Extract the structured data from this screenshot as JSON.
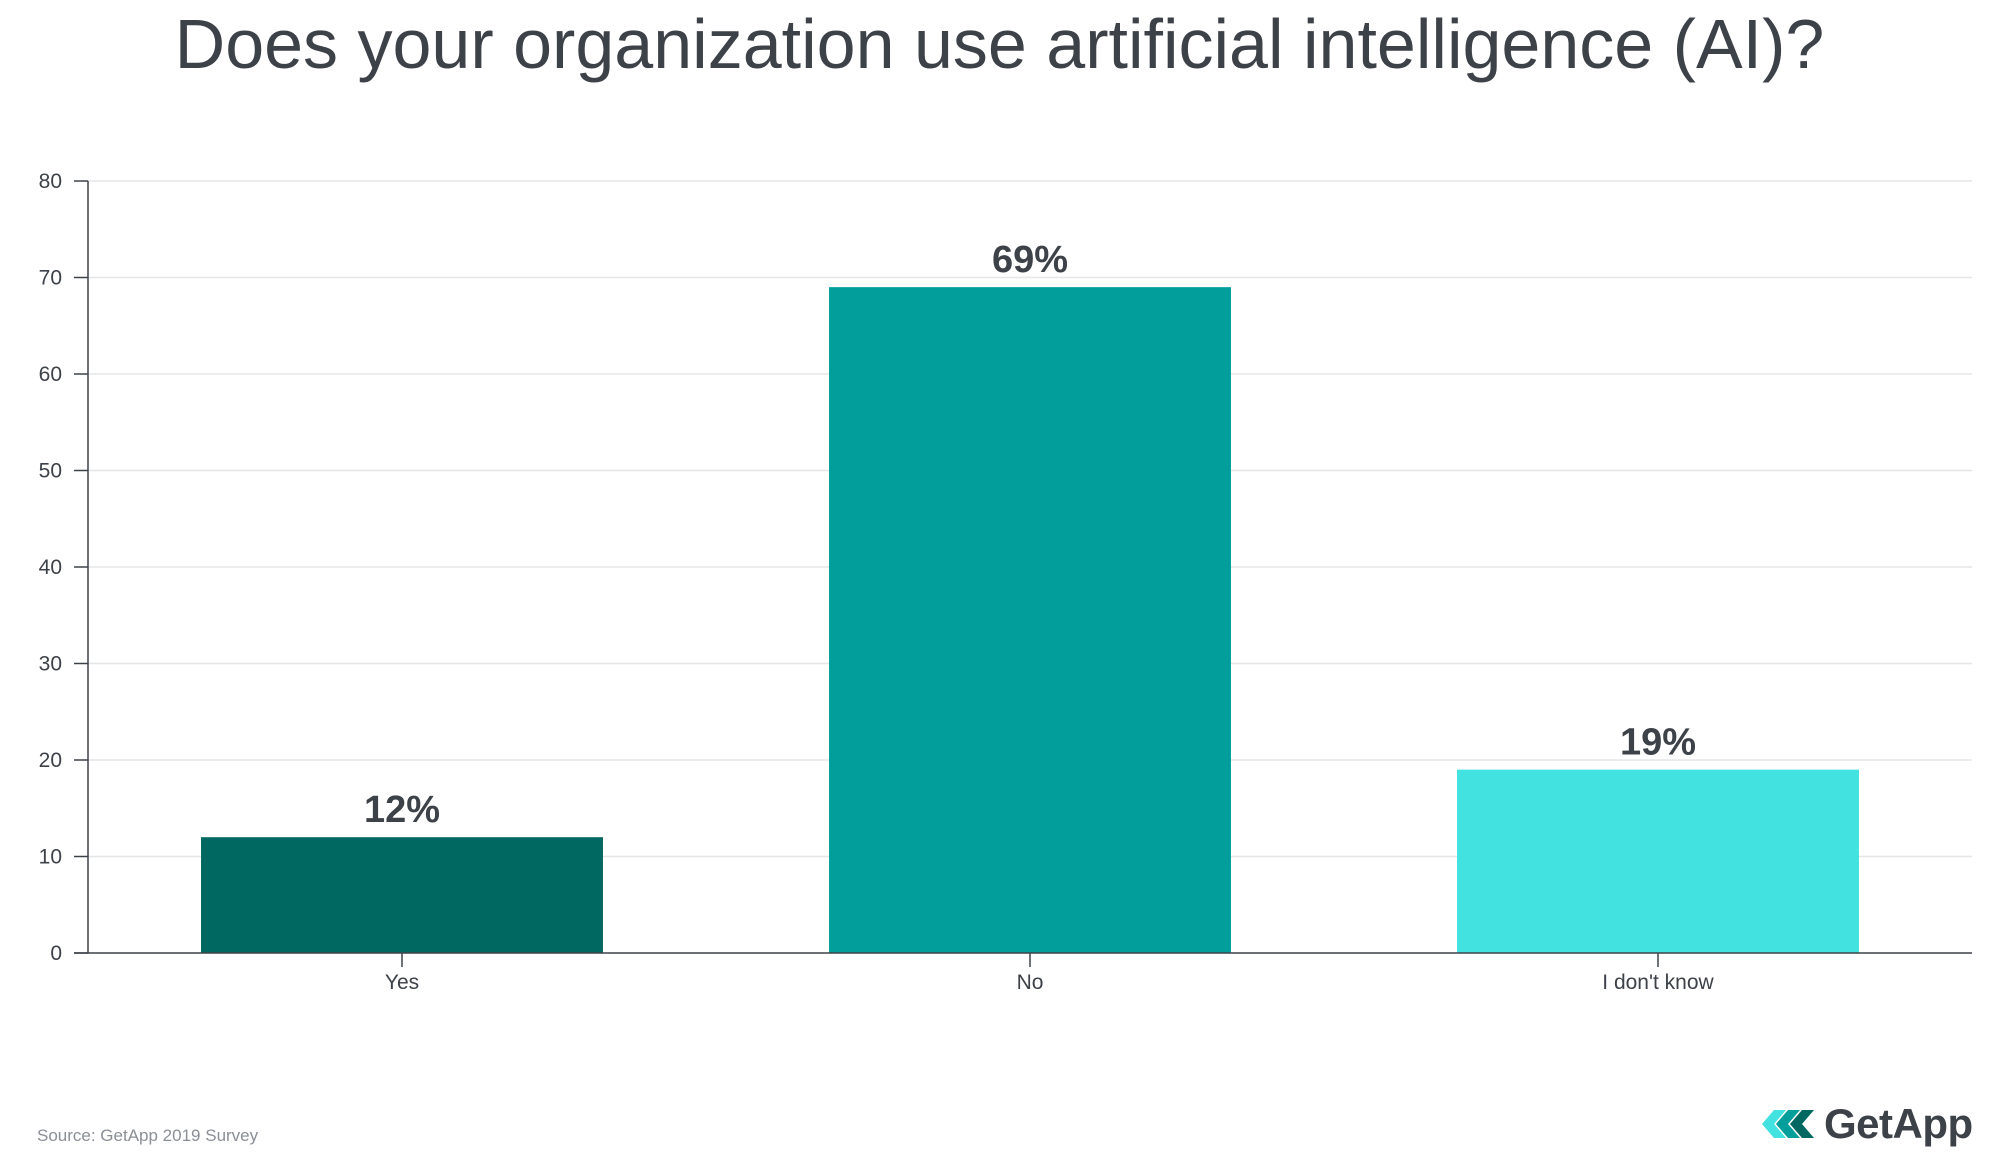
{
  "chart_data": {
    "type": "bar",
    "title": "Does your organization use artificial intelligence (AI)?",
    "categories": [
      "Yes",
      "No",
      "I don't know"
    ],
    "values": [
      12,
      69,
      19
    ],
    "value_labels": [
      "12%",
      "69%",
      "19%"
    ],
    "colors": [
      "#006761",
      "#029e9b",
      "#41e2e0"
    ],
    "ylim": [
      0,
      80
    ],
    "yticks": [
      "0",
      "10",
      "20",
      "30",
      "40",
      "50",
      "60",
      "70",
      "80"
    ],
    "grid": true,
    "xlabel": "",
    "ylabel": ""
  },
  "footer": {
    "source": "Source: GetApp 2019 Survey",
    "brand": "GetApp",
    "brand_icon": "getapp-chevrons-icon",
    "brand_colors": [
      "#41e2e0",
      "#029e9b",
      "#006761"
    ]
  }
}
